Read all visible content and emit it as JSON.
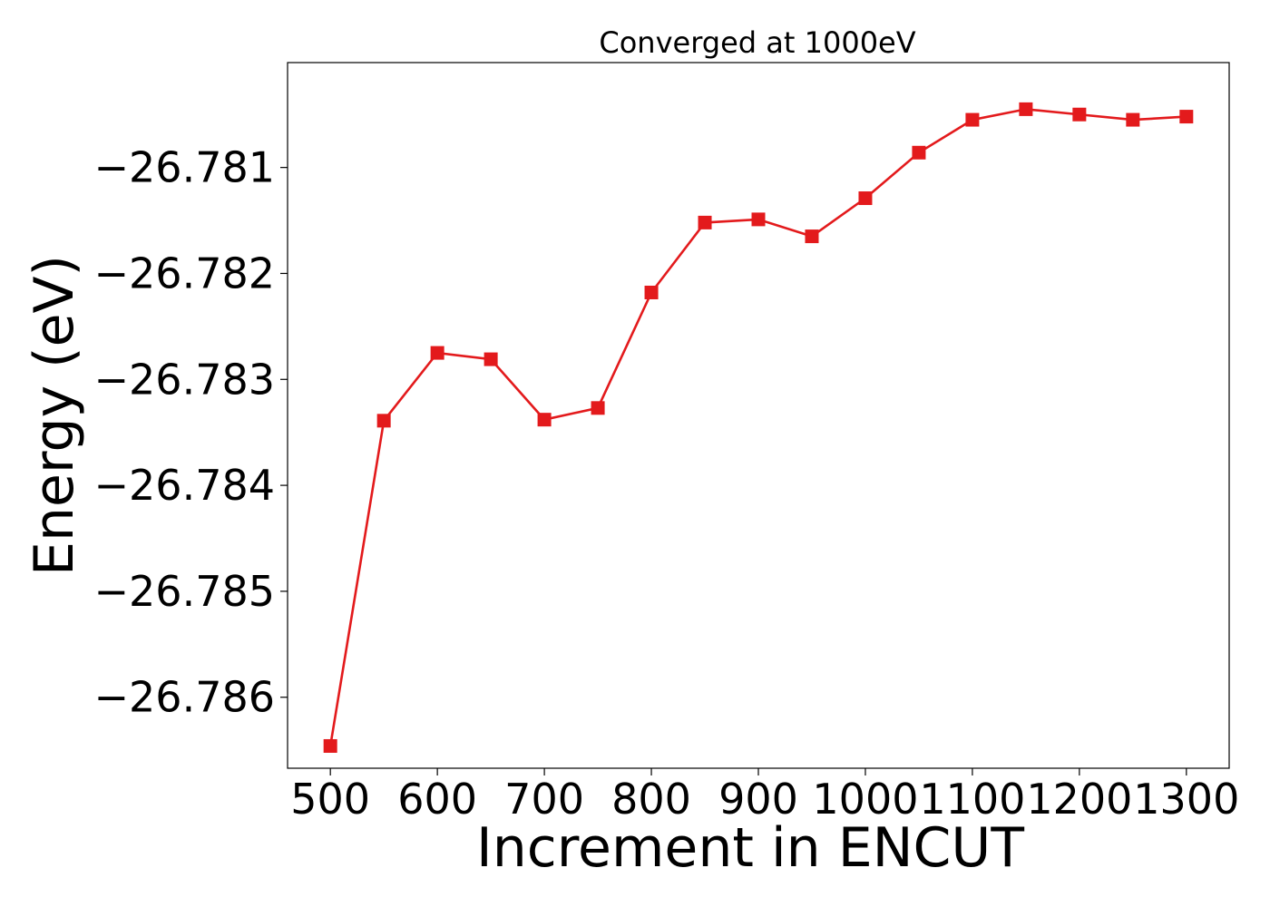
{
  "chart_data": {
    "type": "line",
    "title": "Converged at 1000eV",
    "xlabel": "Increment in ENCUT",
    "ylabel": "Energy (eV)",
    "x": [
      500,
      550,
      600,
      650,
      700,
      750,
      800,
      850,
      900,
      950,
      1000,
      1050,
      1100,
      1150,
      1200,
      1250,
      1300
    ],
    "series": [
      {
        "values": [
          -26.78646,
          -26.78339,
          -26.78275,
          -26.78281,
          -26.78338,
          -26.78327,
          -26.78218,
          -26.78152,
          -26.78149,
          -26.78165,
          -26.78129,
          -26.78086,
          -26.78055,
          -26.78045,
          -26.7805,
          -26.78055,
          -26.78052
        ],
        "color": "#e31a1c",
        "marker": "square"
      }
    ],
    "xticks": [
      500,
      600,
      700,
      800,
      900,
      1000,
      1100,
      1200,
      1300
    ],
    "xtick_labels": [
      "500",
      "600",
      "700",
      "800",
      "900",
      "1000",
      "1100",
      "1200",
      "1300"
    ],
    "yticks": [
      -26.781,
      -26.782,
      -26.783,
      -26.784,
      -26.785,
      -26.786
    ],
    "ytick_labels": [
      "−26.781",
      "−26.782",
      "−26.783",
      "−26.784",
      "−26.785",
      "−26.786"
    ],
    "xlim": [
      460,
      1340
    ],
    "ylim": [
      -26.78667,
      -26.78001
    ],
    "grid": false,
    "legend": "none"
  }
}
